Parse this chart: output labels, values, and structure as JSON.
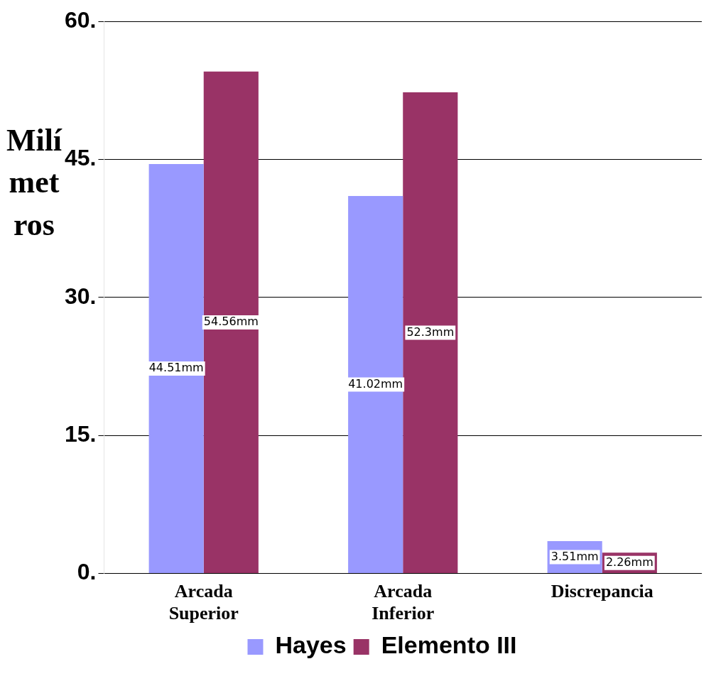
{
  "chart_data": {
    "type": "bar",
    "ylabel": "Milímetros",
    "categories": [
      "Arcada Superior",
      "Arcada Inferior",
      "Discrepancia"
    ],
    "series": [
      {
        "name": "Hayes",
        "color": "#9999ff",
        "values": [
          44.51,
          41.02,
          3.51
        ],
        "value_labels": [
          "44.51mm",
          "41.02mm",
          "3.51mm"
        ]
      },
      {
        "name": "Elemento III",
        "color": "#993366",
        "values": [
          54.56,
          52.3,
          2.26
        ],
        "value_labels": [
          "54.56mm",
          "52.3mm",
          "2.26mm"
        ]
      }
    ],
    "ylim": [
      0,
      60
    ],
    "yticks": [
      {
        "value": 0,
        "label": "0."
      },
      {
        "value": 15,
        "label": "15."
      },
      {
        "value": 30,
        "label": "30."
      },
      {
        "value": 45,
        "label": "45."
      },
      {
        "value": 60,
        "label": "60."
      }
    ],
    "grid": "y",
    "legend": "bottom"
  }
}
